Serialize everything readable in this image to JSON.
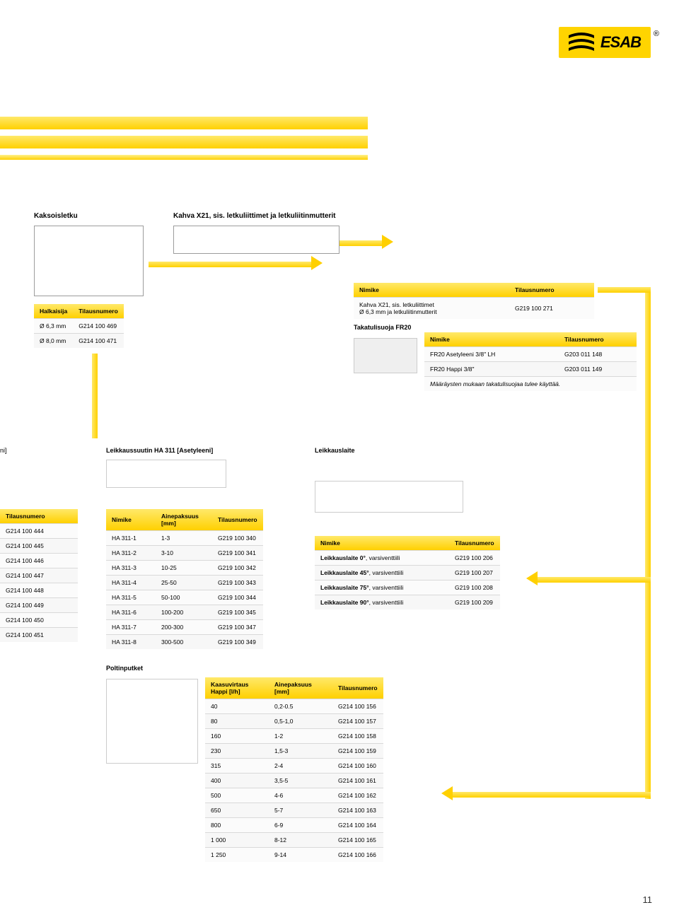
{
  "logo_text": "ESAB",
  "ni_frag": "ni]",
  "sections": {
    "kaksoisletku": "Kaksoisletku",
    "kahva": "Kahva X21, sis. letkuliittimet ja letkuliitinmutterit",
    "leikkaussuutin": "Leikkaussuutin HA 311 [Asetyleeni]",
    "leikkauslaite": "Leikkauslaite",
    "poltinputket": "Poltinputket",
    "takatulisuoja": "Takatulisuoja FR20"
  },
  "headers": {
    "halkaisija": "Halkaisija",
    "tilausnumero": "Tilausnumero",
    "nimike": "Nimike",
    "ainepaksuus": "Ainepaksuus\n[mm]",
    "kaasuvirtaus": "Kaasuvirtaus\nHappi [l/h]"
  },
  "halkaisija": {
    "rows": [
      [
        "Ø 6,3 mm",
        "G214 100 469"
      ],
      [
        "Ø 8,0 mm",
        "G214 100 471"
      ]
    ]
  },
  "kahva_tbl": {
    "rows": [
      [
        "Kahva X21, sis. letkuliittimet\nØ 6,3 mm ja letkuliitinmutterit",
        "G219 100 271"
      ]
    ]
  },
  "takatulisuoja_tbl": {
    "rows": [
      [
        "FR20 Asetyleeni 3/8\" LH",
        "G203 011 148"
      ],
      [
        "FR20 Happi 3/8\"",
        "G203 011 149"
      ]
    ],
    "note": "Määräysten mukaan takatulisuojaa tulee käyttää."
  },
  "left_list": {
    "rows": [
      "G214 100 444",
      "G214 100 445",
      "G214 100 446",
      "G214 100 447",
      "G214 100 448",
      "G214 100 449",
      "G214 100 450",
      "G214 100 451"
    ]
  },
  "nozzle": {
    "rows": [
      [
        "HA 311-1",
        "1-3",
        "G219 100 340"
      ],
      [
        "HA 311-2",
        "3-10",
        "G219 100 341"
      ],
      [
        "HA 311-3",
        "10-25",
        "G219 100 342"
      ],
      [
        "HA 311-4",
        "25-50",
        "G219 100 343"
      ],
      [
        "HA 311-5",
        "50-100",
        "G219 100 344"
      ],
      [
        "HA 311-6",
        "100-200",
        "G219 100 345"
      ],
      [
        "HA 311-7",
        "200-300",
        "G219 100 347"
      ],
      [
        "HA 311-8",
        "300-500",
        "G219 100 349"
      ]
    ]
  },
  "laite": {
    "rows": [
      [
        "Leikkauslaite 0°, varsiventtiili",
        "G219 100 206"
      ],
      [
        "Leikkauslaite 45°, varsiventtiili",
        "G219 100 207"
      ],
      [
        "Leikkauslaite 75°, varsiventtiili",
        "G219 100 208"
      ],
      [
        "Leikkauslaite 90°, varsiventtiili",
        "G219 100 209"
      ]
    ]
  },
  "poltin": {
    "rows": [
      [
        "40",
        "0,2-0.5",
        "G214 100 156"
      ],
      [
        "80",
        "0,5-1,0",
        "G214 100 157"
      ],
      [
        "160",
        "1-2",
        "G214 100 158"
      ],
      [
        "230",
        "1,5-3",
        "G214 100 159"
      ],
      [
        "315",
        "2-4",
        "G214 100 160"
      ],
      [
        "400",
        "3,5-5",
        "G214 100 161"
      ],
      [
        "500",
        "4-6",
        "G214 100 162"
      ],
      [
        "650",
        "5-7",
        "G214 100 163"
      ],
      [
        "800",
        "6-9",
        "G214 100 164"
      ],
      [
        "1 000",
        "8-12",
        "G214 100 165"
      ],
      [
        "1 250",
        "9-14",
        "G214 100 166"
      ]
    ]
  },
  "page_number": "11",
  "colors": {
    "yellow_grad_top": "#ffe96a",
    "yellow_grad_bottom": "#ffd000",
    "border_gray": "#9c9c9c",
    "row_border": "#d9d9d9",
    "bg": "#ffffff"
  }
}
